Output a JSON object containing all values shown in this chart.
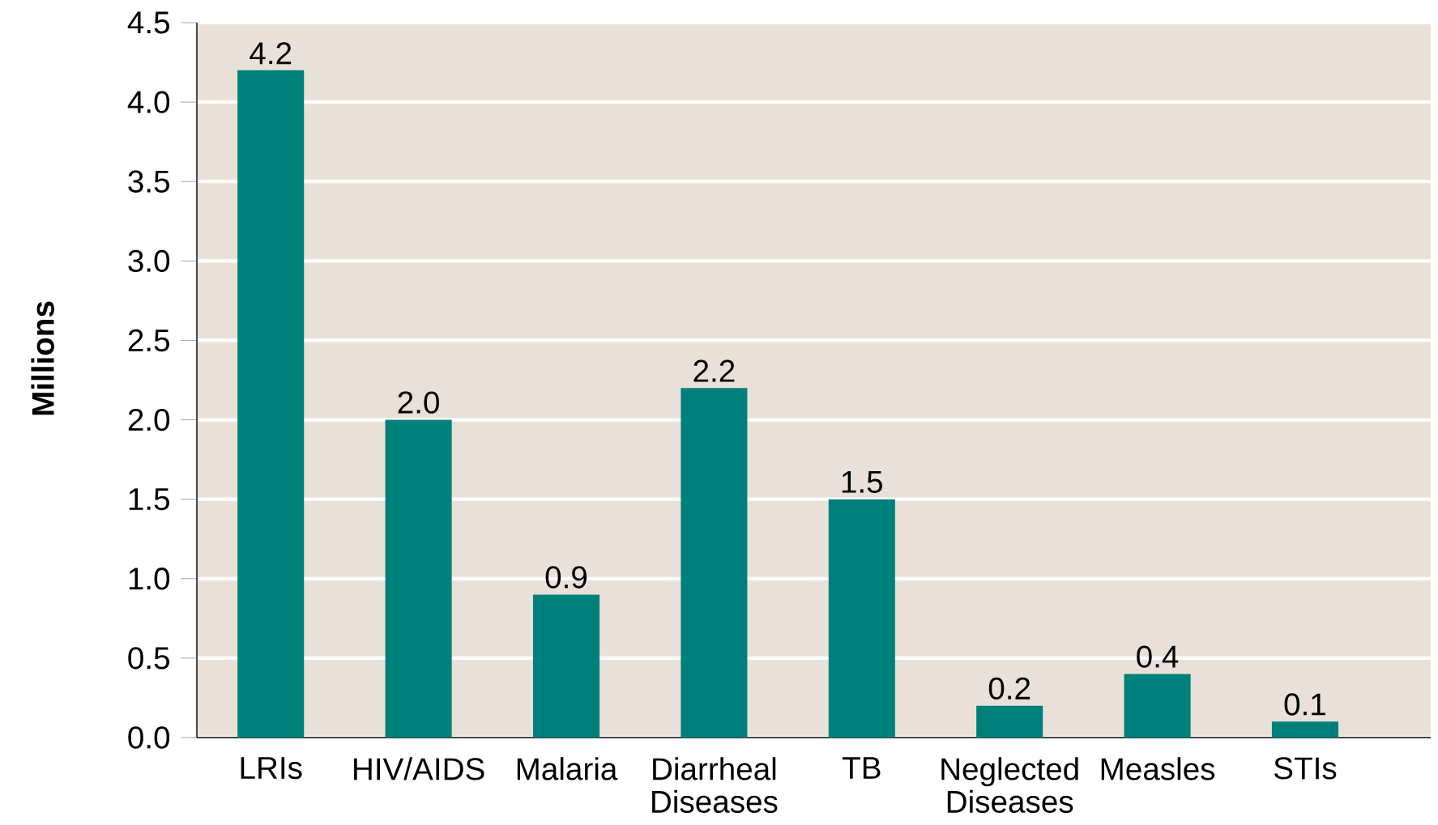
{
  "chart_data": {
    "type": "bar",
    "ylabel": "Millions",
    "categories": [
      "LRIs",
      "HIV/AIDS",
      "Malaria",
      "Diarrheal Diseases",
      "TB",
      "Neglected Diseases",
      "Measles",
      "STIs"
    ],
    "values": [
      4.2,
      2.0,
      0.9,
      2.2,
      1.5,
      0.2,
      0.4,
      0.1
    ],
    "value_labels": [
      "4.2",
      "2.0",
      "0.9",
      "2.2",
      "1.5",
      "0.2",
      "0.4",
      "0.1"
    ],
    "color": "#00807a",
    "ylim": [
      0,
      4.5
    ],
    "yticks": [
      {
        "value": 0,
        "label": "0.0"
      },
      {
        "value": 0.5,
        "label": "0.5"
      },
      {
        "value": 1,
        "label": "1.0"
      },
      {
        "value": 1.5,
        "label": "1.5"
      },
      {
        "value": 2,
        "label": "2.0"
      },
      {
        "value": 2.5,
        "label": "2.5"
      },
      {
        "value": 3,
        "label": "3.0"
      },
      {
        "value": 3.5,
        "label": "3.5"
      },
      {
        "value": 4,
        "label": "4.0"
      },
      {
        "value": 4.5,
        "label": "4.5"
      }
    ],
    "grid": "y"
  }
}
